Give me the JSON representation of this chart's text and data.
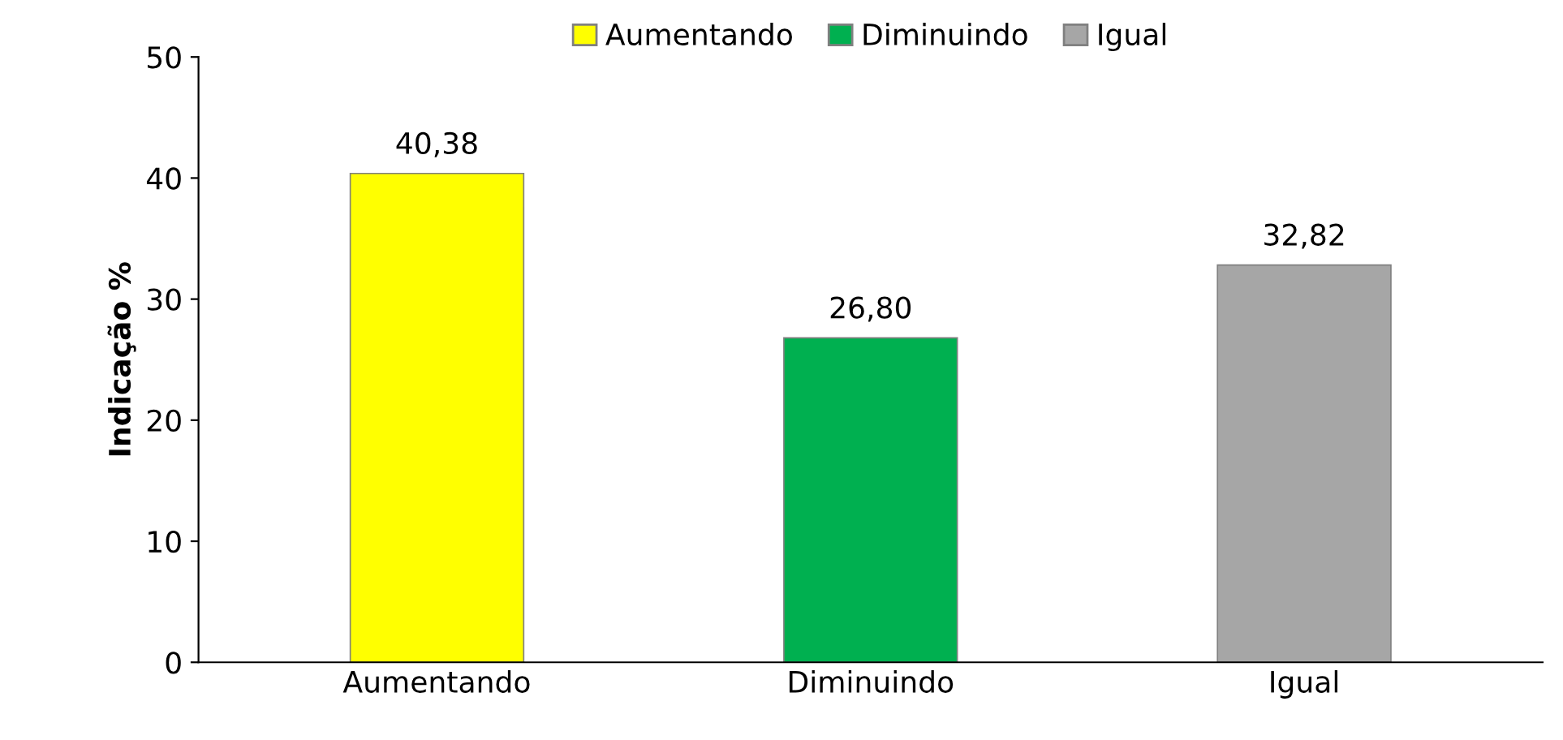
{
  "chart_data": {
    "type": "bar",
    "ylabel": "Indicação %",
    "categories": [
      "Aumentando",
      "Diminuindo",
      "Igual"
    ],
    "series": [
      {
        "name": "Aumentando",
        "color": "#ffff00",
        "values": [
          40.38,
          null,
          null
        ],
        "value_labels": [
          "40,38",
          null,
          null
        ]
      },
      {
        "name": "Diminuindo",
        "color": "#00b050",
        "values": [
          null,
          26.8,
          null
        ],
        "value_labels": [
          null,
          "26,80",
          null
        ]
      },
      {
        "name": "Igual",
        "color": "#a6a6a6",
        "values": [
          null,
          null,
          32.82
        ],
        "value_labels": [
          null,
          null,
          "32,82"
        ]
      }
    ],
    "ylim": [
      0,
      50
    ],
    "yticks": [
      0,
      10,
      20,
      30,
      40,
      50
    ],
    "grid": false,
    "legend": "top"
  }
}
